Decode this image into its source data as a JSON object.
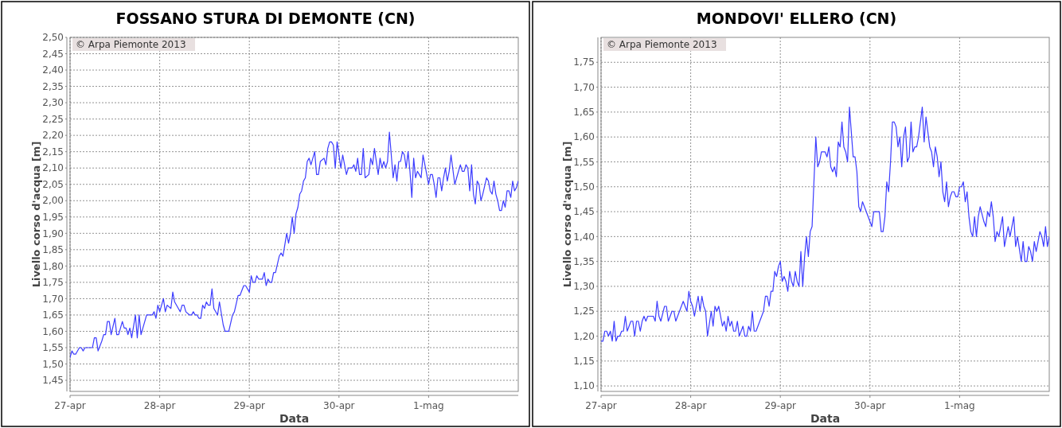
{
  "chart_data": [
    {
      "type": "line",
      "title": "FOSSANO STURA DI DEMONTE (CN)",
      "xlabel": "Data",
      "ylabel": "Livello corso d'acqua [m]",
      "annotations": [
        "© Arpa Piemonte 2013"
      ],
      "grid": true,
      "marker": "none",
      "line_style": "solid",
      "xlim": [
        "2013-04-27",
        "2013-05-02"
      ],
      "ylim": [
        1.416,
        2.5
      ],
      "xticks": [
        {
          "value": "2013-04-27",
          "label": "27-apr"
        },
        {
          "value": "2013-04-28",
          "label": "28-apr"
        },
        {
          "value": "2013-04-29",
          "label": "29-apr"
        },
        {
          "value": "2013-04-30",
          "label": "30-apr"
        },
        {
          "value": "2013-05-01",
          "label": "1-mag"
        }
      ],
      "yticks": [
        {
          "value": 1.45,
          "label": "1,45"
        },
        {
          "value": 1.5,
          "label": "1,50"
        },
        {
          "value": 1.55,
          "label": "1,55"
        },
        {
          "value": 1.6,
          "label": "1,60"
        },
        {
          "value": 1.65,
          "label": "1,65"
        },
        {
          "value": 1.7,
          "label": "1,70"
        },
        {
          "value": 1.75,
          "label": "1,75"
        },
        {
          "value": 1.8,
          "label": "1,80"
        },
        {
          "value": 1.85,
          "label": "1,85"
        },
        {
          "value": 1.9,
          "label": "1,90"
        },
        {
          "value": 1.95,
          "label": "1,95"
        },
        {
          "value": 2.0,
          "label": "2,00"
        },
        {
          "value": 2.05,
          "label": "2,05"
        },
        {
          "value": 2.1,
          "label": "2,10"
        },
        {
          "value": 2.15,
          "label": "2,15"
        },
        {
          "value": 2.2,
          "label": "2,20"
        },
        {
          "value": 2.25,
          "label": "2,25"
        },
        {
          "value": 2.3,
          "label": "2,30"
        },
        {
          "value": 2.35,
          "label": "2,35"
        },
        {
          "value": 2.4,
          "label": "2,40"
        },
        {
          "value": 2.45,
          "label": "2,45"
        },
        {
          "value": 2.5,
          "label": "2,50"
        }
      ],
      "series": [
        {
          "color": "#3c3cff",
          "x": [
            "2013-04-27T00:00",
            "2013-04-27T00:30",
            "2013-04-27T01:00",
            "2013-04-27T01:30",
            "2013-04-27T02:30",
            "2013-04-27T03:00",
            "2013-04-27T03:30",
            "2013-04-27T04:00",
            "2013-04-27T06:00",
            "2013-04-27T06:30",
            "2013-04-27T07:00",
            "2013-04-27T07:30",
            "2013-04-27T08:30",
            "2013-04-27T09:00",
            "2013-04-27T09:30",
            "2013-04-27T10:00",
            "2013-04-27T10:30",
            "2013-04-27T11:00",
            "2013-04-27T12:00",
            "2013-04-27T12:30",
            "2013-04-27T13:00",
            "2013-04-27T14:00",
            "2013-04-27T14:30",
            "2013-04-27T15:00",
            "2013-04-27T15:30",
            "2013-04-27T16:00",
            "2013-04-27T16:30",
            "2013-04-27T17:30",
            "2013-04-27T18:00",
            "2013-04-27T18:30",
            "2013-04-27T19:00",
            "2013-04-27T19:30",
            "2013-04-27T20:30",
            "2013-04-27T22:00",
            "2013-04-27T22:30",
            "2013-04-27T23:00",
            "2013-04-27T23:30",
            "2013-04-28T00:00",
            "2013-04-28T00:30",
            "2013-04-28T01:00",
            "2013-04-28T01:30",
            "2013-04-28T02:00",
            "2013-04-28T03:00",
            "2013-04-28T03:30",
            "2013-04-28T04:00",
            "2013-04-28T05:00",
            "2013-04-28T05:30",
            "2013-04-28T06:00",
            "2013-04-28T06:30",
            "2013-04-28T07:00",
            "2013-04-28T08:00",
            "2013-04-28T08:30",
            "2013-04-28T09:00",
            "2013-04-28T09:30",
            "2013-04-28T10:00",
            "2013-04-28T10:30",
            "2013-04-28T11:00",
            "2013-04-28T11:30",
            "2013-04-28T12:00",
            "2013-04-28T12:30",
            "2013-04-28T13:00",
            "2013-04-28T13:30",
            "2013-04-28T14:00",
            "2013-04-28T14:30",
            "2013-04-28T15:30",
            "2013-04-28T16:00",
            "2013-04-28T17:00",
            "2013-04-28T17:30",
            "2013-04-28T18:30",
            "2013-04-28T19:30",
            "2013-04-28T20:00",
            "2013-04-28T21:00",
            "2013-04-28T21:30",
            "2013-04-28T22:30",
            "2013-04-28T23:00",
            "2013-04-29T00:00",
            "2013-04-29T00:30",
            "2013-04-29T01:00",
            "2013-04-29T01:30",
            "2013-04-29T02:00",
            "2013-04-29T02:30",
            "2013-04-29T03:30",
            "2013-04-29T04:00",
            "2013-04-29T04:30",
            "2013-04-29T05:00",
            "2013-04-29T05:30",
            "2013-04-29T06:00",
            "2013-04-29T06:30",
            "2013-04-29T07:00",
            "2013-04-29T08:00",
            "2013-04-29T08:30",
            "2013-04-29T09:00",
            "2013-04-29T10:00",
            "2013-04-29T10:30",
            "2013-04-29T11:00",
            "2013-04-29T11:30",
            "2013-04-29T12:00",
            "2013-04-29T12:30",
            "2013-04-29T13:00",
            "2013-04-29T13:30",
            "2013-04-29T14:00",
            "2013-04-29T14:30",
            "2013-04-29T15:00",
            "2013-04-29T15:30",
            "2013-04-29T16:00",
            "2013-04-29T16:30",
            "2013-04-29T17:30",
            "2013-04-29T18:00",
            "2013-04-29T18:30",
            "2013-04-29T19:00",
            "2013-04-29T20:00",
            "2013-04-29T20:30",
            "2013-04-29T21:00",
            "2013-04-29T21:30",
            "2013-04-29T22:00",
            "2013-04-29T22:30",
            "2013-04-29T23:00",
            "2013-04-29T23:30",
            "2013-04-30T00:30",
            "2013-04-30T01:00",
            "2013-04-30T02:00",
            "2013-04-30T02:30",
            "2013-04-30T03:30",
            "2013-04-30T04:00",
            "2013-04-30T04:30",
            "2013-04-30T05:00",
            "2013-04-30T05:30",
            "2013-04-30T06:00",
            "2013-04-30T06:30",
            "2013-04-30T07:00",
            "2013-04-30T08:00",
            "2013-04-30T08:30",
            "2013-04-30T09:00",
            "2013-04-30T09:30",
            "2013-04-30T10:30",
            "2013-04-30T11:00",
            "2013-04-30T11:30",
            "2013-04-30T12:00",
            "2013-04-30T12:30",
            "2013-04-30T13:00",
            "2013-04-30T13:30",
            "2013-04-30T14:30",
            "2013-04-30T15:00",
            "2013-04-30T15:30",
            "2013-04-30T16:00",
            "2013-04-30T16:30",
            "2013-04-30T17:00",
            "2013-04-30T17:30",
            "2013-04-30T18:00",
            "2013-04-30T18:30",
            "2013-04-30T19:00",
            "2013-04-30T19:30",
            "2013-04-30T20:00",
            "2013-04-30T20:30",
            "2013-04-30T21:00",
            "2013-04-30T21:30",
            "2013-04-30T22:00",
            "2013-04-30T22:30",
            "2013-04-30T23:30",
            "2013-05-01T00:00",
            "2013-05-01T00:30",
            "2013-05-01T01:00",
            "2013-05-01T01:30",
            "2013-05-01T02:00",
            "2013-05-01T02:30",
            "2013-05-01T03:00",
            "2013-05-01T03:30",
            "2013-05-01T04:00",
            "2013-05-01T04:30",
            "2013-05-01T05:00",
            "2013-05-01T05:30",
            "2013-05-01T06:00",
            "2013-05-01T07:00",
            "2013-05-01T07:30",
            "2013-05-01T08:30",
            "2013-05-01T09:00",
            "2013-05-01T09:30",
            "2013-05-01T10:00",
            "2013-05-01T10:30",
            "2013-05-01T11:00",
            "2013-05-01T11:30",
            "2013-05-01T12:00",
            "2013-05-01T12:30",
            "2013-05-01T13:00",
            "2013-05-01T13:30",
            "2013-05-01T14:00",
            "2013-05-01T14:30",
            "2013-05-01T15:30",
            "2013-05-01T16:00",
            "2013-05-01T16:30",
            "2013-05-01T17:00",
            "2013-05-01T17:30",
            "2013-05-01T18:00",
            "2013-05-01T18:30",
            "2013-05-01T19:00",
            "2013-05-01T19:30",
            "2013-05-01T20:00",
            "2013-05-01T20:30",
            "2013-05-01T21:00",
            "2013-05-01T21:30",
            "2013-05-01T22:00",
            "2013-05-01T22:30",
            "2013-05-01T23:00",
            "2013-05-01T23:30",
            "2013-05-02T00:00"
          ],
          "values": [
            1.52,
            1.54,
            1.53,
            1.53,
            1.55,
            1.55,
            1.54,
            1.55,
            1.55,
            1.58,
            1.58,
            1.54,
            1.57,
            1.59,
            1.59,
            1.63,
            1.63,
            1.59,
            1.64,
            1.59,
            1.59,
            1.63,
            1.61,
            1.61,
            1.59,
            1.61,
            1.58,
            1.65,
            1.58,
            1.65,
            1.59,
            1.61,
            1.65,
            1.65,
            1.66,
            1.64,
            1.68,
            1.66,
            1.68,
            1.7,
            1.66,
            1.68,
            1.67,
            1.72,
            1.69,
            1.67,
            1.66,
            1.68,
            1.68,
            1.66,
            1.65,
            1.65,
            1.66,
            1.65,
            1.65,
            1.64,
            1.64,
            1.68,
            1.67,
            1.69,
            1.68,
            1.68,
            1.73,
            1.67,
            1.65,
            1.69,
            1.62,
            1.6,
            1.6,
            1.65,
            1.66,
            1.71,
            1.71,
            1.74,
            1.74,
            1.72,
            1.77,
            1.75,
            1.75,
            1.77,
            1.76,
            1.76,
            1.78,
            1.74,
            1.76,
            1.75,
            1.75,
            1.78,
            1.78,
            1.83,
            1.84,
            1.83,
            1.9,
            1.87,
            1.9,
            1.95,
            1.9,
            1.96,
            1.98,
            2.02,
            2.03,
            2.06,
            2.07,
            2.12,
            2.13,
            2.11,
            2.15,
            2.08,
            2.08,
            2.12,
            2.13,
            2.11,
            2.16,
            2.18,
            2.18,
            2.17,
            2.1,
            2.18,
            2.1,
            2.14,
            2.08,
            2.1,
            2.1,
            2.11,
            2.09,
            2.13,
            2.08,
            2.08,
            2.16,
            2.07,
            2.08,
            2.13,
            2.11,
            2.16,
            2.08,
            2.13,
            2.1,
            2.12,
            2.1,
            2.12,
            2.21,
            2.07,
            2.11,
            2.06,
            2.12,
            2.12,
            2.15,
            2.14,
            2.1,
            2.15,
            2.09,
            2.01,
            2.13,
            2.07,
            2.09,
            2.08,
            2.07,
            2.14,
            2.08,
            2.05,
            2.08,
            2.08,
            2.05,
            2.01,
            2.07,
            2.07,
            2.03,
            2.07,
            2.1,
            2.06,
            2.09,
            2.14,
            2.05,
            2.07,
            2.11,
            2.09,
            2.09,
            2.11,
            2.1,
            2.03,
            2.11,
            2.02,
            1.99,
            2.06,
            2.05,
            2.0,
            2.02,
            2.07,
            2.06,
            2.03,
            2.02,
            2.06,
            2.02,
            2.0,
            1.97,
            1.97,
            2.0,
            1.98,
            2.03,
            2.03,
            2.01,
            2.06,
            2.03,
            2.04,
            2.06
          ]
        }
      ]
    },
    {
      "type": "line",
      "title": "MONDOVI' ELLERO (CN)",
      "xlabel": "Data",
      "ylabel": "Livello corso d'acqua [m]",
      "annotations": [
        "© Arpa Piemonte 2013"
      ],
      "grid": true,
      "marker": "none",
      "line_style": "solid",
      "xlim": [
        "2013-04-27",
        "2013-05-02"
      ],
      "ylim": [
        1.089,
        1.8
      ],
      "xticks": [
        {
          "value": "2013-04-27",
          "label": "27-apr"
        },
        {
          "value": "2013-04-28",
          "label": "28-apr"
        },
        {
          "value": "2013-04-29",
          "label": "29-apr"
        },
        {
          "value": "2013-04-30",
          "label": "30-apr"
        },
        {
          "value": "2013-05-01",
          "label": "1-mag"
        }
      ],
      "yticks": [
        {
          "value": 1.1,
          "label": "1,10"
        },
        {
          "value": 1.15,
          "label": "1,15"
        },
        {
          "value": 1.2,
          "label": "1,20"
        },
        {
          "value": 1.25,
          "label": "1,25"
        },
        {
          "value": 1.3,
          "label": "1,30"
        },
        {
          "value": 1.35,
          "label": "1,35"
        },
        {
          "value": 1.4,
          "label": "1,40"
        },
        {
          "value": 1.45,
          "label": "1,45"
        },
        {
          "value": 1.5,
          "label": "1,50"
        },
        {
          "value": 1.55,
          "label": "1,55"
        },
        {
          "value": 1.6,
          "label": "1,60"
        },
        {
          "value": 1.65,
          "label": "1,65"
        },
        {
          "value": 1.7,
          "label": "1,70"
        },
        {
          "value": 1.75,
          "label": "1,75"
        }
      ],
      "series": [
        {
          "color": "#3c3cff",
          "x": [
            "2013-04-27T00:00",
            "2013-04-27T00:30",
            "2013-04-27T01:00",
            "2013-04-27T01:30",
            "2013-04-27T02:00",
            "2013-04-27T02:30",
            "2013-04-27T03:00",
            "2013-04-27T03:30",
            "2013-04-27T04:00",
            "2013-04-27T04:30",
            "2013-04-27T05:00",
            "2013-04-27T05:30",
            "2013-04-27T06:00",
            "2013-04-27T06:30",
            "2013-04-27T07:00",
            "2013-04-27T07:30",
            "2013-04-27T08:00",
            "2013-04-27T08:30",
            "2013-04-27T09:00",
            "2013-04-27T09:30",
            "2013-04-27T10:00",
            "2013-04-27T10:30",
            "2013-04-27T11:00",
            "2013-04-27T11:30",
            "2013-04-27T12:00",
            "2013-04-27T12:30",
            "2013-04-27T13:30",
            "2013-04-27T14:00",
            "2013-04-27T14:30",
            "2013-04-27T15:00",
            "2013-04-27T15:30",
            "2013-04-27T16:00",
            "2013-04-27T17:00",
            "2013-04-27T17:30",
            "2013-04-27T18:00",
            "2013-04-27T18:30",
            "2013-04-27T19:00",
            "2013-04-27T19:30",
            "2013-04-27T20:00",
            "2013-04-27T21:00",
            "2013-04-27T21:30",
            "2013-04-27T22:00",
            "2013-04-27T23:00",
            "2013-04-27T23:30",
            "2013-04-28T00:00",
            "2013-04-28T00:30",
            "2013-04-28T01:00",
            "2013-04-28T02:00",
            "2013-04-28T02:30",
            "2013-04-28T03:00",
            "2013-04-28T03:30",
            "2013-04-28T04:00",
            "2013-04-28T04:30",
            "2013-04-28T05:30",
            "2013-04-28T06:00",
            "2013-04-28T06:30",
            "2013-04-28T07:00",
            "2013-04-28T07:30",
            "2013-04-28T08:00",
            "2013-04-28T08:30",
            "2013-04-28T09:00",
            "2013-04-28T09:30",
            "2013-04-28T10:00",
            "2013-04-28T10:30",
            "2013-04-28T11:00",
            "2013-04-28T11:30",
            "2013-04-28T12:00",
            "2013-04-28T12:30",
            "2013-04-28T13:00",
            "2013-04-28T13:30",
            "2013-04-28T14:00",
            "2013-04-28T14:30",
            "2013-04-28T15:00",
            "2013-04-28T15:30",
            "2013-04-28T16:00",
            "2013-04-28T16:30",
            "2013-04-28T17:00",
            "2013-04-28T17:30",
            "2013-04-28T18:00",
            "2013-04-28T19:00",
            "2013-04-28T19:30",
            "2013-04-28T20:00",
            "2013-04-28T20:30",
            "2013-04-28T21:00",
            "2013-04-28T21:30",
            "2013-04-28T22:00",
            "2013-04-28T22:30",
            "2013-04-28T23:00",
            "2013-04-28T23:30",
            "2013-04-29T00:00",
            "2013-04-29T00:30",
            "2013-04-29T01:00",
            "2013-04-29T01:30",
            "2013-04-29T02:00",
            "2013-04-29T02:30",
            "2013-04-29T03:00",
            "2013-04-29T03:30",
            "2013-04-29T04:00",
            "2013-04-29T04:30",
            "2013-04-29T05:00",
            "2013-04-29T05:30",
            "2013-04-29T06:00",
            "2013-04-29T06:30",
            "2013-04-29T07:00",
            "2013-04-29T07:30",
            "2013-04-29T08:00",
            "2013-04-29T08:30",
            "2013-04-29T09:30",
            "2013-04-29T10:00",
            "2013-04-29T10:30",
            "2013-04-29T11:00",
            "2013-04-29T12:00",
            "2013-04-29T12:30",
            "2013-04-29T13:00",
            "2013-04-29T13:30",
            "2013-04-29T14:00",
            "2013-04-29T14:30",
            "2013-04-29T15:00",
            "2013-04-29T15:30",
            "2013-04-29T16:00",
            "2013-04-29T16:30",
            "2013-04-29T17:00",
            "2013-04-29T17:30",
            "2013-04-29T18:00",
            "2013-04-29T18:30",
            "2013-04-29T19:00",
            "2013-04-29T19:30",
            "2013-04-29T20:00",
            "2013-04-29T20:30",
            "2013-04-29T21:00",
            "2013-04-29T21:30",
            "2013-04-29T22:00",
            "2013-04-29T22:30",
            "2013-04-29T23:00",
            "2013-04-29T23:30",
            "2013-04-30T00:00",
            "2013-04-30T00:30",
            "2013-04-30T01:00",
            "2013-04-30T01:30",
            "2013-04-30T02:30",
            "2013-04-30T03:00",
            "2013-04-30T03:30",
            "2013-04-30T04:00",
            "2013-04-30T04:30",
            "2013-04-30T05:00",
            "2013-04-30T05:30",
            "2013-04-30T06:00",
            "2013-04-30T06:30",
            "2013-04-30T07:00",
            "2013-04-30T07:30",
            "2013-04-30T08:00",
            "2013-04-30T08:30",
            "2013-04-30T09:00",
            "2013-04-30T09:30",
            "2013-04-30T10:00",
            "2013-04-30T10:30",
            "2013-04-30T11:00",
            "2013-04-30T11:30",
            "2013-04-30T12:00",
            "2013-04-30T12:30",
            "2013-04-30T13:00",
            "2013-04-30T14:00",
            "2013-04-30T14:30",
            "2013-04-30T15:00",
            "2013-04-30T15:30",
            "2013-04-30T16:00",
            "2013-04-30T16:30",
            "2013-04-30T17:00",
            "2013-04-30T17:30",
            "2013-04-30T18:00",
            "2013-04-30T18:30",
            "2013-04-30T19:00",
            "2013-04-30T19:30",
            "2013-04-30T20:00",
            "2013-04-30T20:30",
            "2013-04-30T21:00",
            "2013-04-30T21:30",
            "2013-04-30T22:00",
            "2013-04-30T22:30",
            "2013-04-30T23:00",
            "2013-04-30T23:30",
            "2013-05-01T00:00",
            "2013-05-01T00:30",
            "2013-05-01T01:00",
            "2013-05-01T01:30",
            "2013-05-01T02:00",
            "2013-05-01T02:30",
            "2013-05-01T03:00",
            "2013-05-01T03:30",
            "2013-05-01T04:00",
            "2013-05-01T04:30",
            "2013-05-01T05:00",
            "2013-05-01T05:30",
            "2013-05-01T06:30",
            "2013-05-01T07:00",
            "2013-05-01T07:30",
            "2013-05-01T08:00",
            "2013-05-01T08:30",
            "2013-05-01T09:00",
            "2013-05-01T09:30",
            "2013-05-01T10:00",
            "2013-05-01T10:30",
            "2013-05-01T11:30",
            "2013-05-01T12:00",
            "2013-05-01T13:00",
            "2013-05-01T13:30",
            "2013-05-01T14:00",
            "2013-05-01T14:30",
            "2013-05-01T15:00",
            "2013-05-01T15:30",
            "2013-05-01T16:30",
            "2013-05-01T17:00",
            "2013-05-01T17:30",
            "2013-05-01T18:00",
            "2013-05-01T18:30",
            "2013-05-01T19:00",
            "2013-05-01T19:30",
            "2013-05-01T20:00",
            "2013-05-01T20:30",
            "2013-05-01T21:00",
            "2013-05-01T21:30",
            "2013-05-01T22:00",
            "2013-05-01T22:30",
            "2013-05-01T23:00",
            "2013-05-01T23:30",
            "2013-05-02T00:00"
          ],
          "values": [
            1.19,
            1.19,
            1.21,
            1.21,
            1.2,
            1.21,
            1.19,
            1.23,
            1.19,
            1.2,
            1.2,
            1.21,
            1.21,
            1.24,
            1.21,
            1.22,
            1.23,
            1.23,
            1.2,
            1.23,
            1.23,
            1.21,
            1.23,
            1.24,
            1.23,
            1.24,
            1.24,
            1.24,
            1.23,
            1.27,
            1.24,
            1.23,
            1.26,
            1.26,
            1.23,
            1.24,
            1.25,
            1.25,
            1.23,
            1.25,
            1.26,
            1.27,
            1.25,
            1.29,
            1.27,
            1.26,
            1.24,
            1.28,
            1.25,
            1.28,
            1.26,
            1.25,
            1.2,
            1.25,
            1.22,
            1.26,
            1.25,
            1.26,
            1.24,
            1.22,
            1.23,
            1.21,
            1.24,
            1.22,
            1.23,
            1.21,
            1.21,
            1.23,
            1.2,
            1.21,
            1.22,
            1.2,
            1.2,
            1.22,
            1.21,
            1.25,
            1.21,
            1.21,
            1.22,
            1.24,
            1.25,
            1.28,
            1.28,
            1.26,
            1.29,
            1.29,
            1.33,
            1.32,
            1.34,
            1.35,
            1.31,
            1.32,
            1.31,
            1.29,
            1.33,
            1.31,
            1.3,
            1.33,
            1.31,
            1.3,
            1.37,
            1.3,
            1.36,
            1.4,
            1.36,
            1.41,
            1.42,
            1.6,
            1.54,
            1.55,
            1.57,
            1.57,
            1.56,
            1.58,
            1.54,
            1.53,
            1.54,
            1.52,
            1.59,
            1.58,
            1.63,
            1.58,
            1.57,
            1.55,
            1.66,
            1.61,
            1.56,
            1.56,
            1.53,
            1.46,
            1.45,
            1.47,
            1.46,
            1.45,
            1.44,
            1.43,
            1.42,
            1.45,
            1.45,
            1.45,
            1.41,
            1.41,
            1.44,
            1.51,
            1.49,
            1.55,
            1.63,
            1.63,
            1.62,
            1.58,
            1.6,
            1.54,
            1.6,
            1.62,
            1.55,
            1.56,
            1.63,
            1.57,
            1.58,
            1.58,
            1.6,
            1.66,
            1.59,
            1.64,
            1.61,
            1.58,
            1.57,
            1.54,
            1.58,
            1.56,
            1.52,
            1.55,
            1.49,
            1.47,
            1.51,
            1.46,
            1.48,
            1.49,
            1.49,
            1.48,
            1.48,
            1.5,
            1.5,
            1.51,
            1.47,
            1.49,
            1.44,
            1.41,
            1.4,
            1.44,
            1.4,
            1.44,
            1.46,
            1.43,
            1.42,
            1.45,
            1.44,
            1.47,
            1.44,
            1.39,
            1.41,
            1.4,
            1.44,
            1.38,
            1.42,
            1.4,
            1.42,
            1.44,
            1.38,
            1.4,
            1.35,
            1.39,
            1.35,
            1.35,
            1.38,
            1.37,
            1.35,
            1.39,
            1.37,
            1.39,
            1.41,
            1.4,
            1.38,
            1.42,
            1.38,
            1.4
          ]
        }
      ]
    }
  ]
}
